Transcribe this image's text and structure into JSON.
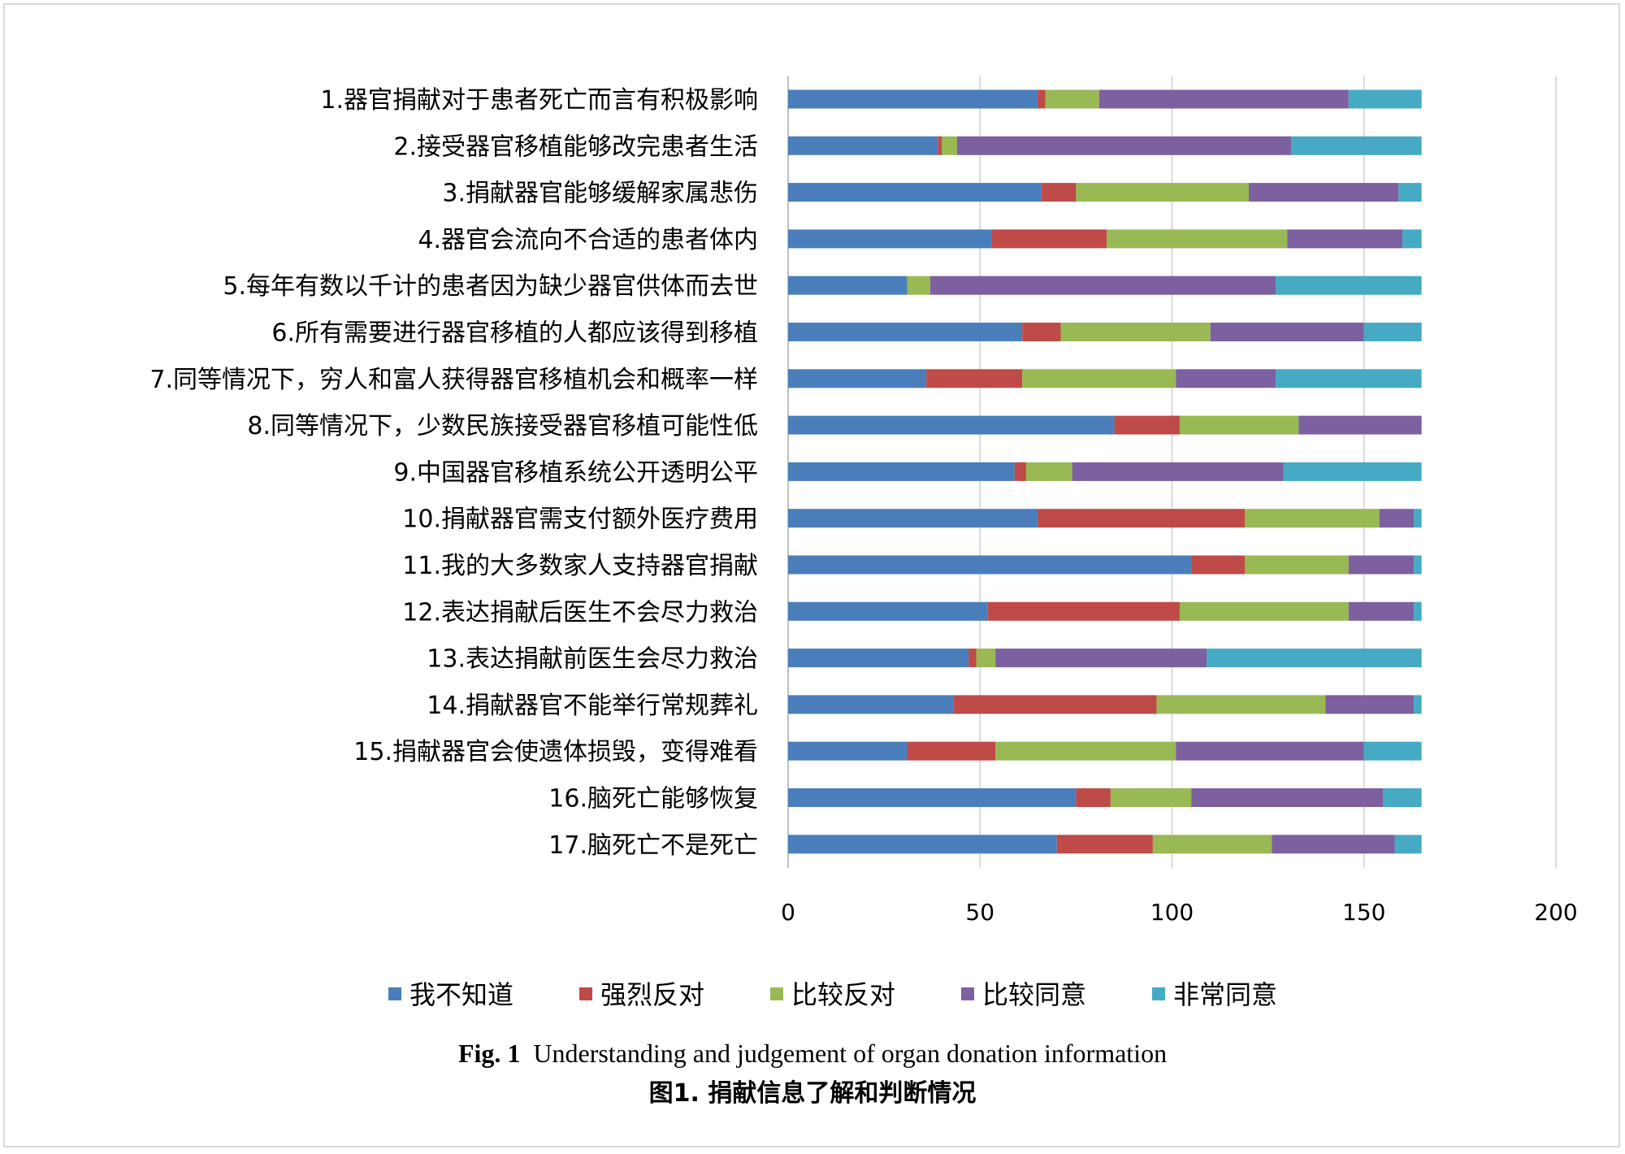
{
  "colors": {
    "series": [
      "#4a7ebb",
      "#be4b48",
      "#98b954",
      "#7d60a0",
      "#46aac5"
    ],
    "grid": "#d9d9d9",
    "frame": "#d9d9d9"
  },
  "chart_data": {
    "type": "bar",
    "orientation": "horizontal",
    "stacked": true,
    "categories": [
      "1.器官捐献对于患者死亡而言有积极影响",
      "2.接受器官移植能够改完患者生活",
      "3.捐献器官能够缓解家属悲伤",
      "4.器官会流向不合适的患者体内",
      "5.每年有数以千计的患者因为缺少器官供体而去世",
      "6.所有需要进行器官移植的人都应该得到移植",
      "7.同等情况下，穷人和富人获得器官移植机会和概率一样",
      "8.同等情况下，少数民族接受器官移植可能性低",
      "9.中国器官移植系统公开透明公平",
      "10.捐献器官需支付额外医疗费用",
      "11.我的大多数家人支持器官捐献",
      "12.表达捐献后医生不会尽力救治",
      "13.表达捐献前医生会尽力救治",
      "14.捐献器官不能举行常规葬礼",
      "15.捐献器官会使遗体损毁，变得难看",
      "16.脑死亡能够恢复",
      "17.脑死亡不是死亡"
    ],
    "series": [
      {
        "name": "我不知道",
        "values": [
          65,
          39,
          66,
          53,
          31,
          61,
          36,
          85,
          59,
          65,
          105,
          52,
          47,
          43,
          31,
          75,
          70
        ]
      },
      {
        "name": "强烈反对",
        "values": [
          2,
          1,
          9,
          30,
          0,
          10,
          25,
          17,
          3,
          54,
          14,
          50,
          2,
          53,
          23,
          9,
          25
        ]
      },
      {
        "name": "比较反对",
        "values": [
          14,
          4,
          45,
          47,
          6,
          39,
          40,
          31,
          12,
          35,
          27,
          44,
          5,
          44,
          47,
          21,
          31
        ]
      },
      {
        "name": "比较同意",
        "values": [
          65,
          87,
          39,
          30,
          90,
          40,
          26,
          32,
          55,
          9,
          17,
          17,
          55,
          23,
          49,
          50,
          32
        ]
      },
      {
        "name": "非常同意",
        "values": [
          19,
          34,
          6,
          5,
          38,
          15,
          38,
          0,
          36,
          2,
          2,
          2,
          56,
          2,
          15,
          10,
          7
        ]
      }
    ],
    "xlim": [
      0,
      200
    ],
    "xticks": [
      "0",
      "50",
      "100",
      "150",
      "200"
    ],
    "grid": "vertical major gridlines",
    "legend_position": "bottom"
  },
  "caption": {
    "en_prefix": "Fig. 1",
    "en_text": "Understanding and judgement of organ donation information",
    "zh": "图1. 捐献信息了解和判断情况"
  }
}
